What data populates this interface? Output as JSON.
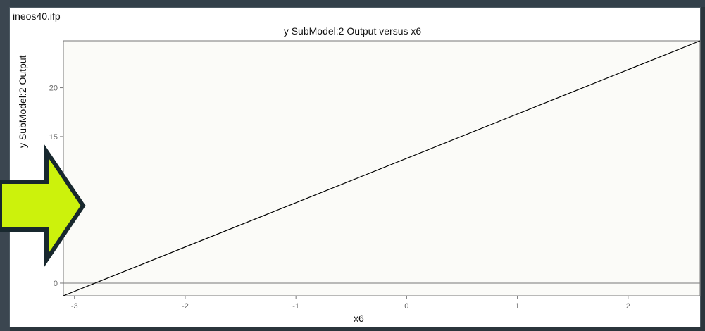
{
  "window": {
    "file_name": "ineos40.ifp"
  },
  "chart_data": {
    "type": "line",
    "title": "y SubModel:2 Output versus x6",
    "xlabel": "x6",
    "ylabel": "y SubModel:2 Output",
    "xlim": [
      -3.1,
      2.65
    ],
    "ylim": [
      -1.3,
      24.8
    ],
    "x_ticks": [
      -3,
      -2,
      -1,
      0,
      1,
      2
    ],
    "y_ticks": [
      0,
      15,
      20
    ],
    "reference_line": {
      "y": 0
    },
    "series": [
      {
        "x": [
          -3.1,
          2.65
        ],
        "y": [
          -1.3,
          24.8
        ]
      }
    ],
    "grid": false
  },
  "colors": {
    "line": "#000000",
    "axis": "#555555",
    "arrow_fill": "#ccf20c",
    "arrow_outline": "#18282e"
  }
}
